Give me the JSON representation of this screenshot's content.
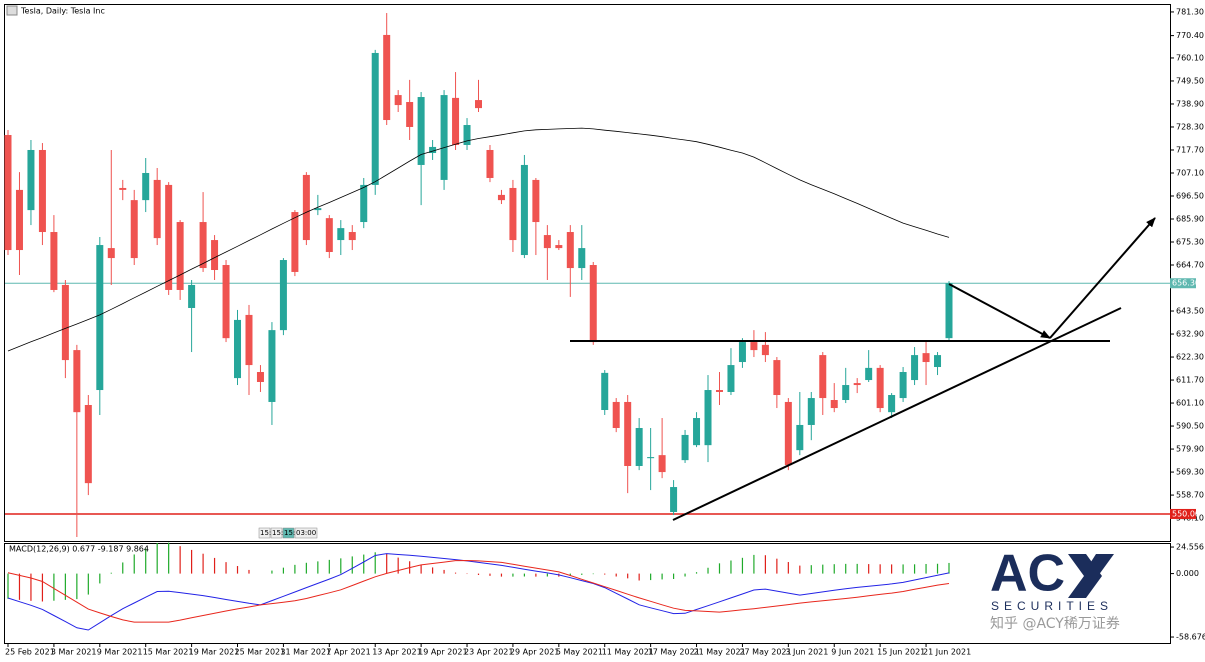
{
  "chart_data": [
    {
      "type": "candlestick",
      "title": "Tesla, Daily:  Tesla Inc",
      "categories": [
        "25 Feb 2021",
        null,
        null,
        null,
        "3 Mar 2021",
        null,
        null,
        null,
        "9 Mar 2021",
        null,
        null,
        null,
        "15 Mar 2021",
        null,
        null,
        null,
        "19 Mar 2021",
        null,
        null,
        null,
        "25 Mar 2021",
        null,
        null,
        null,
        "31 Mar 2021",
        null,
        null,
        null,
        "7 Apr 2021",
        null,
        null,
        null,
        "13 Apr 2021",
        null,
        null,
        null,
        "19 Apr 2021",
        null,
        null,
        null,
        "23 Apr 2021",
        null,
        null,
        null,
        "29 Apr 2021",
        null,
        null,
        null,
        "5 May 2021",
        null,
        null,
        null,
        "11 May 2021",
        null,
        null,
        null,
        "17 May 2021",
        null,
        null,
        null,
        "21 May 2021",
        null,
        null,
        null,
        "27 May 2021",
        null,
        null,
        null,
        "3 Jun 2021",
        null,
        null,
        null,
        "9 Jun 2021",
        null,
        null,
        null,
        "15 Jun 2021",
        null,
        null,
        null,
        "21 Jun 2021",
        null,
        null
      ],
      "open": [
        724.6,
        699.3,
        690.0,
        717.7,
        679.9,
        655.5,
        625.5,
        600.2,
        607.1,
        672.5,
        700.2,
        694.6,
        694.6,
        703.9,
        701.6,
        684.5,
        644.9,
        684.5,
        676.2,
        664.7,
        612.6,
        641.7,
        615.4,
        601.6,
        634.7,
        689.1,
        706.2,
        690.0,
        686.3,
        676.2,
        679.9,
        684.5,
        701.6,
        770.7,
        743.0,
        739.8,
        710.8,
        716.3,
        703.9,
        741.7,
        720.0,
        740.7,
        717.7,
        697.0,
        700.2,
        669.3,
        703.9,
        678.5,
        673.9,
        679.9,
        663.3,
        664.7,
        597.9,
        601.6,
        601.6,
        572.1,
        575.7,
        577.1,
        550.9,
        574.8,
        581.7,
        581.7,
        607.1,
        606.2,
        620.0,
        629.2,
        627.9,
        620.9,
        601.6,
        579.4,
        591.0,
        623.2,
        602.5,
        602.5,
        610.3,
        611.7,
        617.3,
        596.9,
        603.4,
        611.7,
        624.1,
        617.7,
        631.0
      ],
      "high": [
        726.9,
        707.5,
        722.3,
        720.9,
        687.7,
        657.8,
        627.9,
        604.8,
        677.6,
        717.7,
        703.9,
        699.3,
        714.0,
        709.4,
        702.9,
        685.4,
        657.8,
        698.3,
        678.5,
        667.0,
        644.0,
        646.3,
        618.6,
        638.4,
        667.9,
        690.0,
        707.5,
        697.0,
        687.7,
        685.4,
        683.1,
        704.8,
        763.8,
        780.8,
        745.3,
        750.0,
        744.4,
        722.3,
        745.3,
        753.6,
        732.4,
        750.0,
        720.0,
        699.3,
        703.9,
        715.4,
        704.8,
        683.1,
        676.2,
        683.1,
        683.1,
        666.1,
        616.3,
        603.4,
        604.8,
        594.2,
        589.6,
        594.2,
        565.6,
        588.7,
        596.9,
        614.0,
        615.4,
        626.4,
        631.0,
        634.7,
        633.8,
        622.3,
        603.4,
        606.2,
        606.2,
        624.6,
        610.3,
        617.3,
        612.6,
        625.5,
        618.6,
        605.7,
        617.7,
        626.9,
        629.2,
        624.6,
        657.3
      ],
      "low": [
        669.3,
        660.1,
        683.1,
        673.9,
        652.2,
        612.6,
        539.4,
        558.7,
        595.6,
        655.5,
        694.6,
        664.7,
        689.1,
        673.9,
        650.9,
        648.6,
        624.6,
        661.5,
        657.8,
        629.2,
        609.4,
        604.8,
        606.2,
        591.0,
        632.4,
        659.6,
        673.9,
        687.7,
        667.9,
        669.3,
        671.6,
        681.7,
        697.0,
        729.2,
        735.2,
        722.3,
        692.3,
        713.1,
        699.3,
        717.7,
        717.7,
        735.2,
        702.9,
        692.8,
        670.7,
        667.9,
        669.3,
        657.8,
        671.6,
        650.0,
        657.8,
        627.9,
        595.6,
        587.7,
        559.6,
        570.2,
        561.0,
        566.5,
        549.5,
        573.5,
        580.8,
        573.9,
        600.2,
        604.8,
        617.3,
        622.3,
        620.0,
        598.8,
        570.2,
        577.1,
        584.0,
        595.6,
        596.9,
        601.1,
        605.7,
        610.8,
        596.9,
        594.2,
        601.6,
        609.4,
        609.4,
        614.0,
        630.1
      ],
      "close": [
        671.6,
        671.6,
        717.7,
        679.9,
        653.2,
        620.9,
        596.9,
        564.2,
        673.9,
        667.9,
        699.3,
        667.9,
        707.1,
        677.1,
        653.2,
        653.2,
        655.5,
        663.3,
        662.4,
        631.0,
        639.4,
        618.6,
        610.8,
        634.7,
        667.0,
        661.5,
        676.2,
        690.9,
        670.7,
        681.7,
        676.2,
        701.6,
        762.4,
        731.5,
        738.4,
        728.3,
        742.1,
        719.1,
        743.0,
        720.0,
        729.2,
        737.0,
        704.8,
        694.6,
        676.2,
        710.8,
        684.5,
        672.5,
        672.5,
        663.3,
        672.5,
        629.2,
        615.0,
        589.6,
        572.1,
        589.6,
        576.2,
        569.3,
        562.4,
        586.4,
        594.2,
        607.1,
        606.2,
        618.6,
        629.2,
        625.5,
        623.2,
        604.8,
        572.5,
        591.0,
        603.4,
        603.4,
        598.8,
        609.4,
        609.4,
        617.3,
        598.8,
        604.8,
        615.4,
        623.2,
        620.0,
        623.2,
        656.3
      ],
      "up_color": "#26a69a",
      "down_color": "#ef5350",
      "moving_average": {
        "color": "#000000",
        "values": [
          625.1,
          627.2,
          629.3,
          631.3,
          633.4,
          635.5,
          637.5,
          639.6,
          641.7,
          644.3,
          646.9,
          649.6,
          652.2,
          654.9,
          657.5,
          660.1,
          662.8,
          665.4,
          668.1,
          670.7,
          673.3,
          676.0,
          678.6,
          681.3,
          683.9,
          686.5,
          689.0,
          691.3,
          693.5,
          695.8,
          698.1,
          700.4,
          703.1,
          706.2,
          709.4,
          712.6,
          715.6,
          717.2,
          718.8,
          720.3,
          721.9,
          723.0,
          723.8,
          724.7,
          725.6,
          726.5,
          727.0,
          727.2,
          727.4,
          727.6,
          727.8,
          727.4,
          726.8,
          726.3,
          725.7,
          725.1,
          724.5,
          723.8,
          723.0,
          722.3,
          721.5,
          720.3,
          719.0,
          717.6,
          716.3,
          714.4,
          711.8,
          709.1,
          706.5,
          703.9,
          701.7,
          699.6,
          697.5,
          695.3,
          693.1,
          690.8,
          688.5,
          686.2,
          684.0,
          682.3,
          680.7,
          679.0,
          677.4
        ]
      },
      "levels": [
        {
          "value": 656.3,
          "label": "656.30",
          "color": "#5fb8b0"
        },
        {
          "value": 550,
          "label": "550.00",
          "color": "#e0201a"
        }
      ],
      "ylim": [
        538,
        784.5
      ],
      "yticks": [
        {
          "value": 781.3,
          "label": "781.30"
        },
        {
          "value": 770.4,
          "label": "770.40"
        },
        {
          "value": 760.1,
          "label": "760.10"
        },
        {
          "value": 749.5,
          "label": "749.50"
        },
        {
          "value": 738.9,
          "label": "738.90"
        },
        {
          "value": 728.3,
          "label": "728.30"
        },
        {
          "value": 717.7,
          "label": "717.70"
        },
        {
          "value": 707.1,
          "label": "707.10"
        },
        {
          "value": 696.5,
          "label": "696.50"
        },
        {
          "value": 685.9,
          "label": "685.90"
        },
        {
          "value": 675.3,
          "label": "675.30"
        },
        {
          "value": 664.7,
          "label": "664.70"
        },
        {
          "value": 643.5,
          "label": "643.50"
        },
        {
          "value": 632.9,
          "label": "632.90"
        },
        {
          "value": 622.3,
          "label": "622.30"
        },
        {
          "value": 611.7,
          "label": "611.70"
        },
        {
          "value": 601.1,
          "label": "601.10"
        },
        {
          "value": 590.5,
          "label": "590.50"
        },
        {
          "value": 579.9,
          "label": "579.90"
        },
        {
          "value": 569.3,
          "label": "569.30"
        },
        {
          "value": 558.7,
          "label": "558.70"
        },
        {
          "value": 548.1,
          "label": "548.10"
        }
      ],
      "timer": [
        "15:",
        "15:",
        "15:",
        "03:00"
      ]
    },
    {
      "type": "macd",
      "label": "MACD(12,26,9) 0.677 -9.187 9.864",
      "ylim": [
        -64.2,
        28.3
      ],
      "yticks": [
        {
          "value": 24.556,
          "label": "24.556"
        },
        {
          "value": 0,
          "label": "0.000"
        },
        {
          "value": -58.676,
          "label": "-58.676"
        }
      ],
      "up_color": "#1faa2a",
      "down_color": "#e0201a",
      "histogram": [
        -23.3,
        -24.3,
        -25.2,
        -25.8,
        -25.1,
        -24.3,
        -23.6,
        -19.4,
        -9.1,
        0.8,
        10.3,
        17.7,
        23.1,
        28.3,
        28.6,
        25.4,
        21.9,
        18.4,
        14.5,
        10.6,
        7.0,
        3.4,
        0.0,
        2.8,
        5.5,
        8.1,
        10.0,
        11.3,
        12.7,
        14.1,
        15.9,
        17.6,
        19.7,
        18.3,
        14.8,
        11.4,
        8.1,
        5.7,
        3.4,
        0.9,
        -0.4,
        -1.3,
        -2.1,
        -2.8,
        -2.8,
        -2.7,
        -2.8,
        -2.7,
        -2.8,
        -2.0,
        -1.2,
        -0.5,
        -0.9,
        -2.7,
        -4.4,
        -6.4,
        -6.0,
        -5.4,
        -5.0,
        -2.7,
        1.3,
        5.4,
        9.5,
        12.1,
        14.6,
        17.3,
        17.0,
        13.8,
        10.7,
        7.4,
        7.8,
        8.3,
        8.7,
        9.0,
        9.0,
        8.8,
        8.6,
        8.5,
        8.5,
        8.6,
        8.9,
        9.1,
        9.864
      ],
      "series": [
        {
          "color": "#2323e6",
          "values": [
            -22.6,
            -26.0,
            -29.3,
            -33.1,
            -38.8,
            -44.4,
            -50.1,
            -52.2,
            -45.5,
            -38.9,
            -32.5,
            -27.2,
            -21.8,
            -16.6,
            -16.3,
            -17.6,
            -19.0,
            -20.4,
            -22.1,
            -24.0,
            -25.7,
            -27.5,
            -29.0,
            -25.0,
            -21.0,
            -17.0,
            -13.0,
            -9.1,
            -5.1,
            -0.9,
            4.9,
            10.7,
            16.7,
            18.5,
            17.7,
            16.9,
            16.1,
            15.0,
            14.0,
            12.9,
            11.7,
            10.4,
            9.0,
            7.6,
            5.8,
            4.1,
            2.3,
            0.6,
            -1.2,
            -3.8,
            -6.5,
            -9.2,
            -13.0,
            -18.2,
            -23.5,
            -28.9,
            -31.6,
            -34.3,
            -37.0,
            -36.7,
            -33.2,
            -29.7,
            -26.1,
            -22.5,
            -18.9,
            -15.2,
            -14.3,
            -16.2,
            -18.0,
            -19.9,
            -18.4,
            -16.9,
            -15.4,
            -14.0,
            -12.8,
            -11.7,
            -10.6,
            -9.5,
            -8.1,
            -5.9,
            -3.7,
            -1.5,
            0.677
          ]
        },
        {
          "color": "#e8271d",
          "values": [
            0.7,
            -1.7,
            -4.1,
            -7.3,
            -13.7,
            -20.1,
            -26.5,
            -32.8,
            -36.4,
            -39.7,
            -42.8,
            -44.9,
            -44.9,
            -44.9,
            -44.9,
            -43.0,
            -40.9,
            -38.8,
            -36.6,
            -34.6,
            -32.7,
            -30.9,
            -29.0,
            -27.8,
            -26.5,
            -25.1,
            -23.0,
            -20.4,
            -17.8,
            -15.0,
            -11.0,
            -6.9,
            -3.0,
            0.2,
            2.9,
            5.5,
            8.0,
            9.3,
            10.6,
            12.0,
            12.1,
            11.7,
            11.1,
            10.4,
            8.6,
            6.8,
            5.1,
            3.3,
            1.6,
            -1.8,
            -5.3,
            -8.7,
            -12.1,
            -15.5,
            -19.1,
            -22.5,
            -25.6,
            -28.9,
            -32.0,
            -34.0,
            -34.5,
            -35.1,
            -35.6,
            -34.6,
            -33.5,
            -32.5,
            -31.3,
            -30.0,
            -28.7,
            -27.3,
            -26.2,
            -25.2,
            -24.1,
            -23.0,
            -21.8,
            -20.5,
            -19.2,
            -18.0,
            -16.6,
            -14.5,
            -12.6,
            -10.6,
            -9.187
          ]
        }
      ]
    }
  ],
  "logo": {
    "brand": "AC",
    "tagline": "SECURITIES",
    "watermark": "知乎 @ACY稀万证券"
  }
}
